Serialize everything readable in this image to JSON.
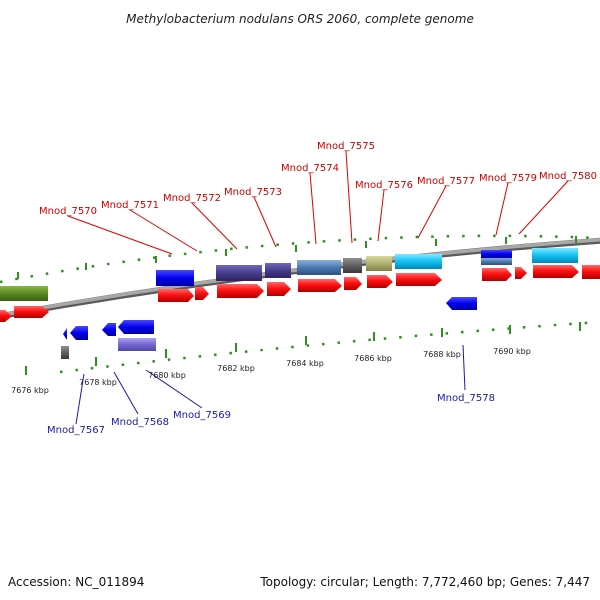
{
  "title": "Methylobacterium nodulans ORS 2060, complete genome",
  "footer": {
    "accession": "Accession: NC_011894",
    "topology": "Topology: circular; Length: 7,772,460 bp; Genes: 7,447"
  },
  "scale_labels": [
    "7676 kbp",
    "7678 kbp",
    "7680 kbp",
    "7682 kbp",
    "7684 kbp",
    "7686 kbp",
    "7688 kbp",
    "7690 kbp"
  ],
  "gene_labels_top": [
    "Mnod_7570",
    "Mnod_7571",
    "Mnod_7572",
    "Mnod_7573",
    "Mnod_7574",
    "Mnod_7575",
    "Mnod_7576",
    "Mnod_7577",
    "Mnod_7579",
    "Mnod_7580"
  ],
  "gene_labels_bottom": [
    "Mnod_7567",
    "Mnod_7568",
    "Mnod_7569",
    "Mnod_7578"
  ],
  "colors": {
    "backbone": "#8a8a8a",
    "cds_red": "#ff1a1a",
    "tick_green": "#2f8f1f",
    "label_top": "#cc0000",
    "label_bottom": "#1a1aa6"
  }
}
